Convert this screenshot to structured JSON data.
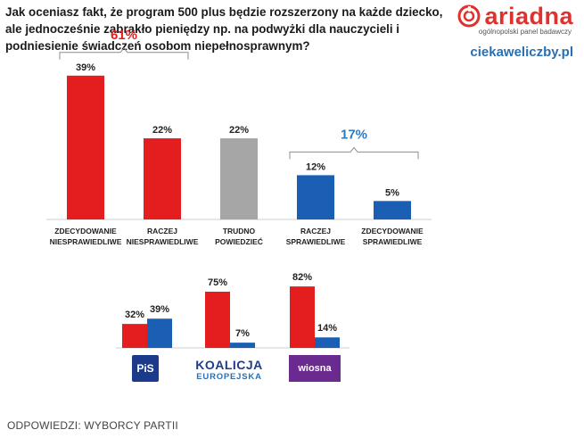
{
  "header": {
    "question": "Jak oceniasz fakt, że program 500 plus będzie rozszerzony na każde dziecko, ale jednocześnie zabrakło pieniędzy np. na podwyżki dla nauczycieli i podniesienie świadczeń osobom niepełnosprawnym?"
  },
  "brand": {
    "name": "ariadna",
    "tagline": "ogólnopolski panel badawczy",
    "site": "ciekaweliczby.pl",
    "logo_icon": "ariadna-spiral-icon"
  },
  "footer": {
    "note": "ODPOWIEDZI: WYBORCY PARTII"
  },
  "colors": {
    "red": "#e41e1e",
    "gray": "#a6a6a6",
    "blue": "#1a5fb4",
    "group_red": "#e41e1e",
    "group_blue": "#2a7ac4"
  },
  "chart_data": [
    {
      "type": "bar",
      "title": "",
      "categories": [
        [
          "ZDECYDOWANIE",
          "NIESPRAWIEDLIWE"
        ],
        [
          "RACZEJ",
          "NIESPRAWIEDLIWE"
        ],
        [
          "TRUDNO",
          "POWIEDZIEĆ"
        ],
        [
          "RACZEJ",
          "SPRAWIEDLIWE"
        ],
        [
          "ZDECYDOWANIE",
          "SPRAWIEDLIWE"
        ]
      ],
      "values": [
        39,
        22,
        22,
        12,
        5
      ],
      "value_labels": [
        "39%",
        "22%",
        "22%",
        "12%",
        "5%"
      ],
      "bar_colors": [
        "red",
        "red",
        "gray",
        "blue",
        "blue"
      ],
      "ylim": [
        0,
        45
      ],
      "groups": [
        {
          "label": "61%",
          "from": 0,
          "to": 1,
          "color": "group_red"
        },
        {
          "label": "17%",
          "from": 3,
          "to": 4,
          "color": "group_blue"
        }
      ],
      "xlabel": "",
      "ylabel": ""
    },
    {
      "type": "bar",
      "title": "",
      "categories": [
        "PiS",
        "KOALICJA EUROPEJSKA",
        "Wiosna"
      ],
      "series": [
        {
          "name": "NIESPRAWIEDLIWE",
          "color": "red",
          "values": [
            32,
            75,
            82
          ],
          "labels": [
            "32%",
            "75%",
            "82%"
          ]
        },
        {
          "name": "SPRAWIEDLIWE",
          "color": "blue",
          "values": [
            39,
            7,
            14
          ],
          "labels": [
            "39%",
            "7%",
            "14%"
          ]
        }
      ],
      "ylim": [
        0,
        100
      ],
      "xlabel": "",
      "ylabel": ""
    }
  ],
  "parties": {
    "pis": "PiS",
    "ko_top": "KOALICJA",
    "ko_bottom": "EUROPEJSKA",
    "wiosna": "wiosna"
  }
}
